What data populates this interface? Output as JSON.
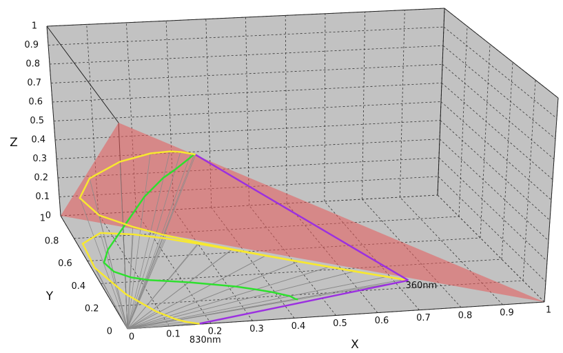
{
  "chart_data": {
    "type": "line3d",
    "x_label": "X",
    "y_label": "Y",
    "z_label": "Z",
    "xlim": [
      0,
      1
    ],
    "ylim": [
      0,
      1
    ],
    "zlim": [
      0,
      1
    ],
    "xticks": [
      0,
      0.1,
      0.2,
      0.3,
      0.4,
      0.5,
      0.6,
      0.7,
      0.8,
      0.9,
      1
    ],
    "yticks": [
      0,
      0.2,
      0.4,
      0.6,
      0.8,
      1
    ],
    "zticks": [
      0,
      0.1,
      0.2,
      0.3,
      0.4,
      0.5,
      0.6,
      0.7,
      0.8,
      0.9,
      1
    ],
    "grid": true,
    "plane_color": "#e85a5a",
    "purple_color": "#9b30e0",
    "ray_color": "#8a8a8a",
    "annotations": [
      "360nm",
      "830nm"
    ],
    "series": [
      {
        "color": "#f7e830",
        "x": [
          0.1741,
          0.1714,
          0.1644,
          0.144,
          0.1241,
          0.0913,
          0.0454,
          0.0082,
          0.0139,
          0.0743,
          0.1547,
          0.2296,
          0.3016,
          0.3731,
          0.4441,
          0.5125,
          0.5752,
          0.627,
          0.6915,
          0.726,
          0.7347
        ],
        "y": [
          0.005,
          0.0051,
          0.0109,
          0.0297,
          0.0578,
          0.1327,
          0.295,
          0.5384,
          0.7502,
          0.8338,
          0.8059,
          0.7543,
          0.6923,
          0.6245,
          0.5547,
          0.4866,
          0.4242,
          0.3725,
          0.3083,
          0.274,
          0.2653
        ],
        "z": [
          0.8209,
          0.8235,
          0.8247,
          0.8263,
          0.8181,
          0.776,
          0.6596,
          0.4534,
          0.2359,
          0.0919,
          0.0394,
          0.0161,
          0.0061,
          0.0024,
          0.0012,
          0.0009,
          0.0006,
          0.0005,
          0.0002,
          0,
          0
        ]
      },
      {
        "color": "#2ee02e",
        "x": [
          0.174,
          0.171,
          0.159,
          0.13,
          0.105,
          0.068,
          0.027,
          0.004,
          0.007,
          0.037,
          0.077,
          0.119,
          0.166,
          0.216,
          0.266,
          0.318,
          0.362,
          0.395,
          0.429,
          0.436,
          0.441
        ],
        "y": [
          0.005,
          0.005,
          0.011,
          0.027,
          0.049,
          0.1,
          0.177,
          0.28,
          0.375,
          0.417,
          0.403,
          0.392,
          0.381,
          0.362,
          0.333,
          0.302,
          0.267,
          0.235,
          0.191,
          0.164,
          0.159
        ],
        "z": [
          0.821,
          0.824,
          0.8,
          0.744,
          0.695,
          0.582,
          0.396,
          0.236,
          0.118,
          0.046,
          0.02,
          0.008,
          0.003,
          0.001,
          0.001,
          0.001,
          0,
          0,
          0,
          0,
          0
        ]
      }
    ]
  }
}
